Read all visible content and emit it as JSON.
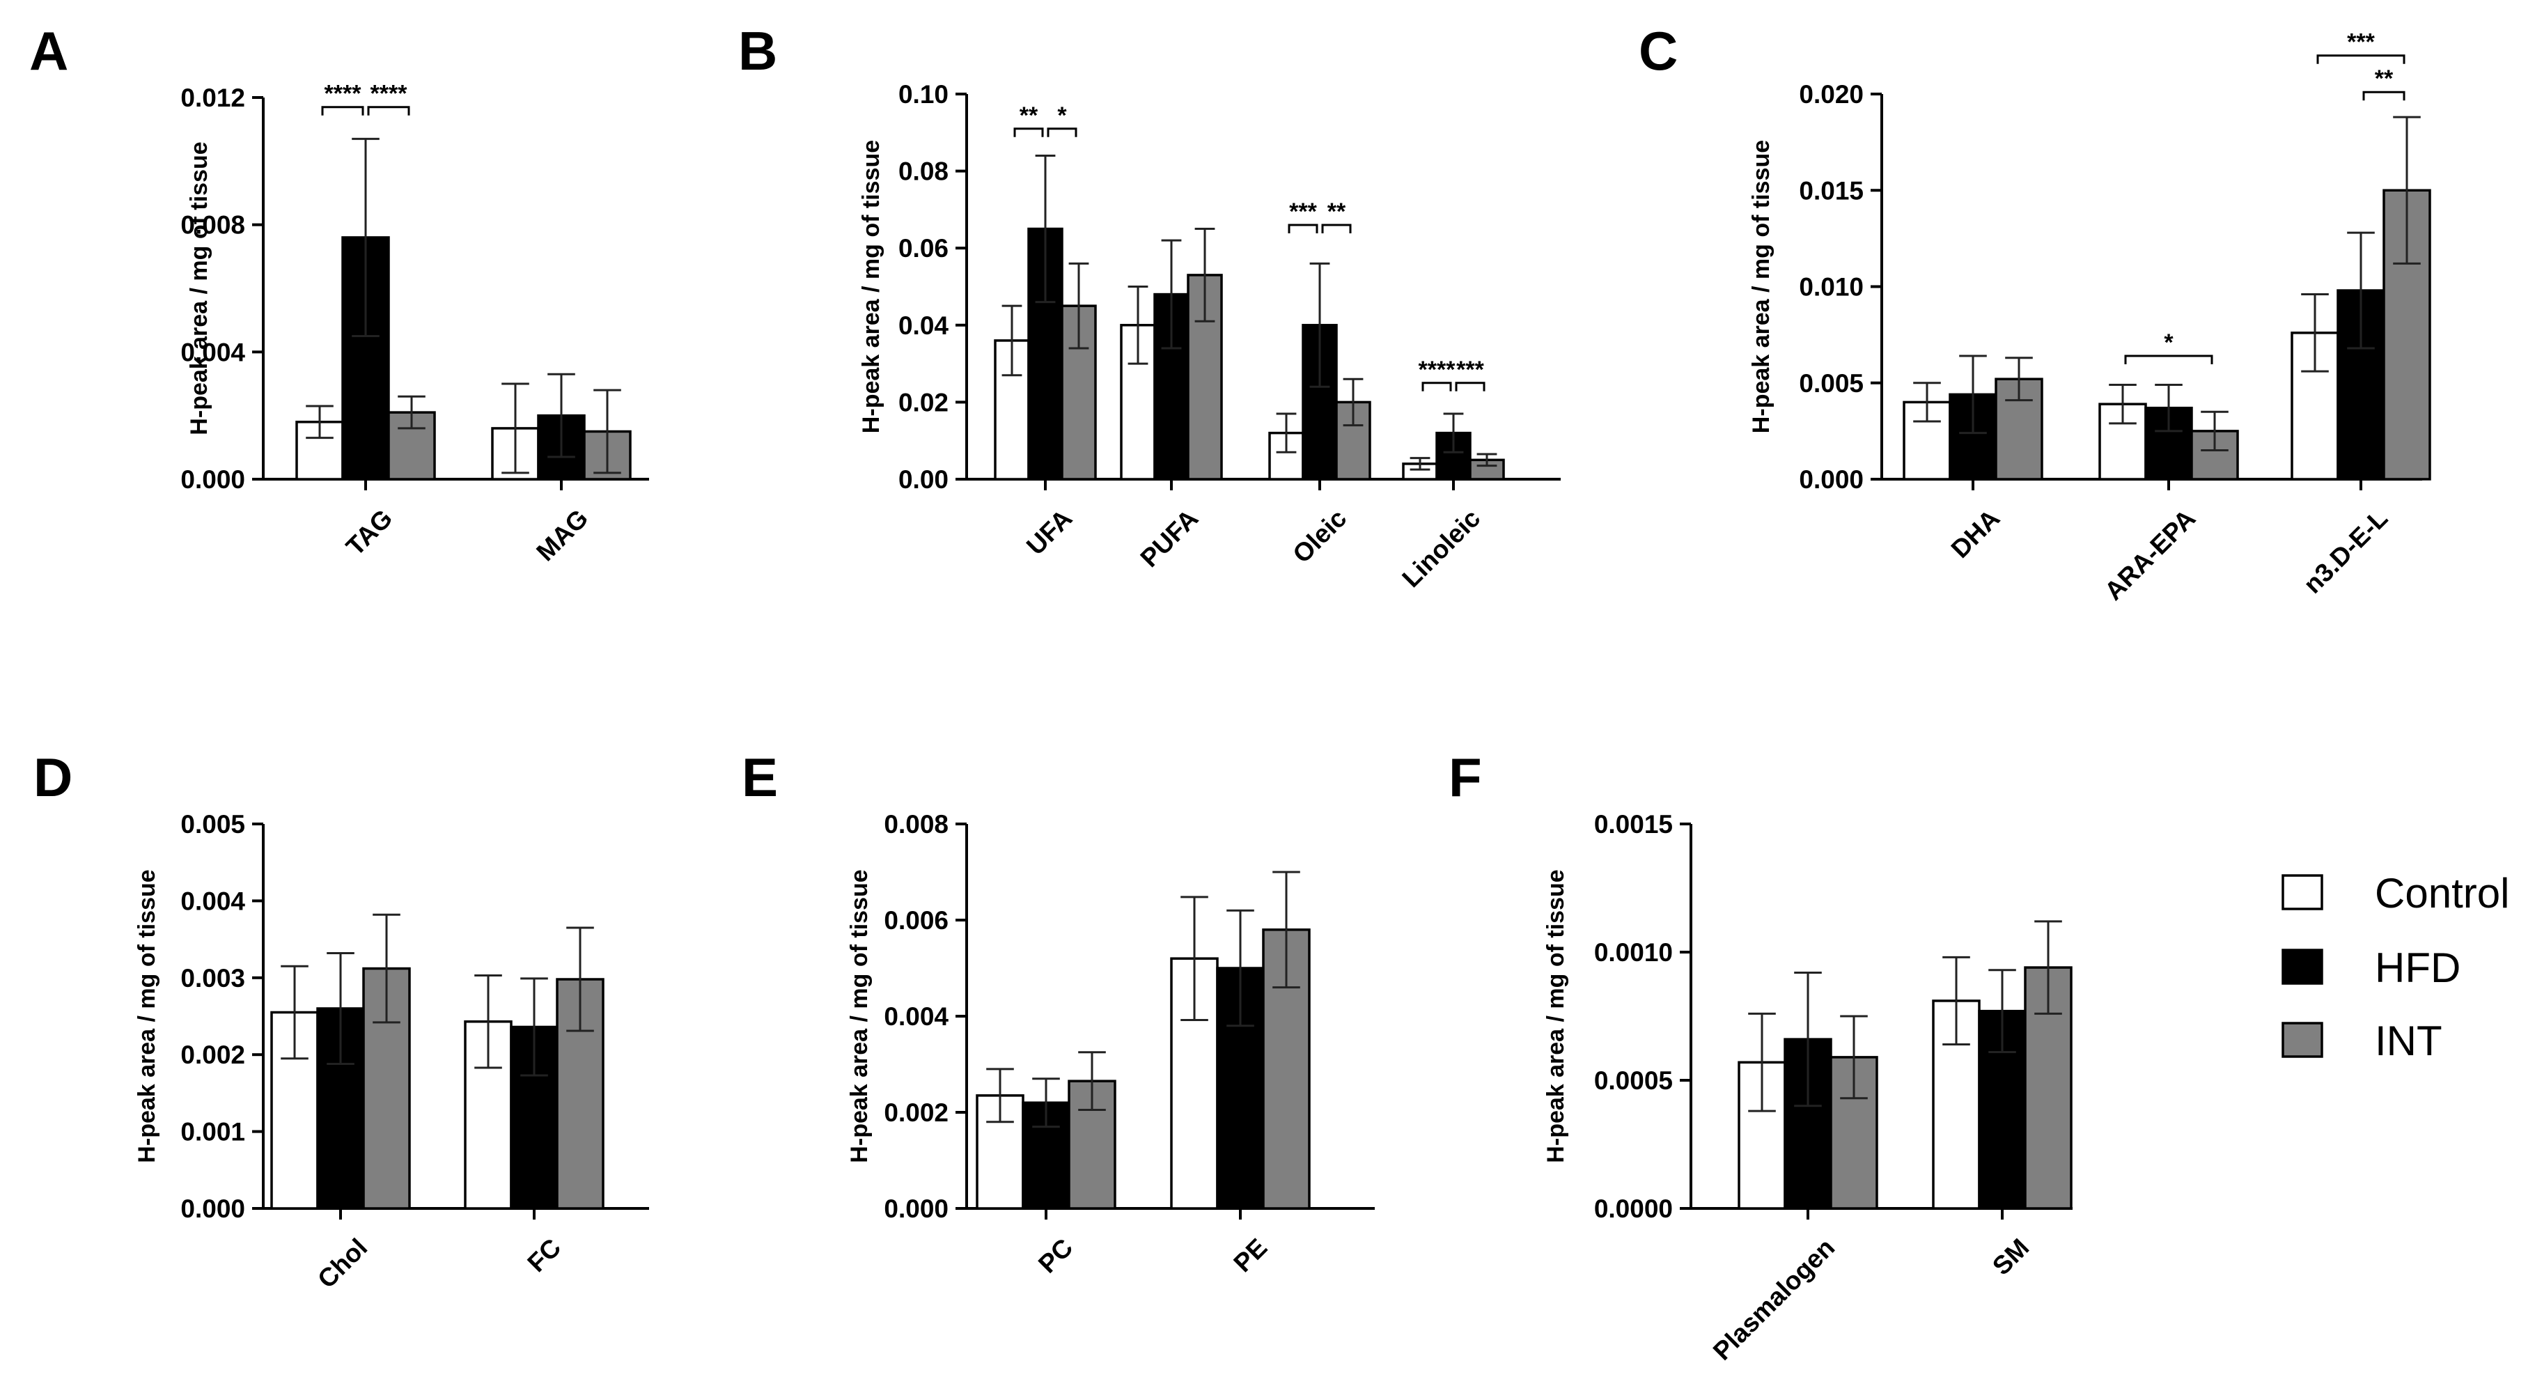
{
  "series_styles": [
    {
      "name": "Control",
      "fill": "#ffffff"
    },
    {
      "name": "HFD",
      "fill": "#000000"
    },
    {
      "name": "INT",
      "fill": "#808080"
    }
  ],
  "legend": {
    "position": "right",
    "entries": [
      "Control",
      "HFD",
      "INT"
    ]
  },
  "chart_data": [
    {
      "panel": "A",
      "type": "bar",
      "ylabel": "H-peak area / mg of tissue",
      "ylim": [
        0,
        0.012
      ],
      "yticks": [
        "0.000",
        "0.004",
        "0.008",
        "0.012"
      ],
      "categories": [
        "TAG",
        "MAG"
      ],
      "series": [
        {
          "name": "Control",
          "values": [
            0.0018,
            0.0016
          ],
          "errors": [
            0.0005,
            0.0014
          ]
        },
        {
          "name": "HFD",
          "values": [
            0.0076,
            0.002
          ],
          "errors": [
            0.0031,
            0.0013
          ]
        },
        {
          "name": "INT",
          "values": [
            0.0021,
            0.0015
          ],
          "errors": [
            0.0005,
            0.0013
          ]
        }
      ],
      "annotations": [
        {
          "label": "****",
          "category": 0,
          "from": 0,
          "to": 1,
          "y": 0.0117
        },
        {
          "label": "****",
          "category": 0,
          "from": 1,
          "to": 2,
          "y": 0.0117
        }
      ]
    },
    {
      "panel": "B",
      "type": "bar",
      "ylabel": "H-peak area / mg of tissue",
      "ylim": [
        0,
        0.1
      ],
      "yticks": [
        "0.00",
        "0.02",
        "0.04",
        "0.06",
        "0.08",
        "0.10"
      ],
      "categories": [
        "UFA",
        "PUFA",
        "Oleic",
        "Linoleic"
      ],
      "series": [
        {
          "name": "Control",
          "values": [
            0.036,
            0.04,
            0.012,
            0.004
          ],
          "errors": [
            0.009,
            0.01,
            0.005,
            0.0015
          ]
        },
        {
          "name": "HFD",
          "values": [
            0.065,
            0.048,
            0.04,
            0.012
          ],
          "errors": [
            0.019,
            0.014,
            0.016,
            0.005
          ]
        },
        {
          "name": "INT",
          "values": [
            0.045,
            0.053,
            0.02,
            0.005
          ],
          "errors": [
            0.011,
            0.012,
            0.006,
            0.0015
          ]
        }
      ],
      "annotations": [
        {
          "label": "**",
          "category": 0,
          "from": 0,
          "to": 1,
          "y": 0.091
        },
        {
          "label": "*",
          "category": 0,
          "from": 1,
          "to": 2,
          "y": 0.091
        },
        {
          "label": "***",
          "category": 2,
          "from": 0,
          "to": 1,
          "y": 0.066
        },
        {
          "label": "**",
          "category": 2,
          "from": 1,
          "to": 2,
          "y": 0.066
        },
        {
          "label": "****",
          "category": 3,
          "from": 0,
          "to": 1,
          "y": 0.025
        },
        {
          "label": "***",
          "category": 3,
          "from": 1,
          "to": 2,
          "y": 0.025
        }
      ]
    },
    {
      "panel": "C",
      "type": "bar",
      "ylabel": "H-peak area / mg of tissue",
      "ylim": [
        0,
        0.02
      ],
      "yticks": [
        "0.000",
        "0.005",
        "0.010",
        "0.015",
        "0.020"
      ],
      "categories": [
        "DHA",
        "ARA-EPA",
        "n3.D-E-L"
      ],
      "series": [
        {
          "name": "Control",
          "values": [
            0.004,
            0.0039,
            0.0076
          ],
          "errors": [
            0.001,
            0.001,
            0.002
          ]
        },
        {
          "name": "HFD",
          "values": [
            0.0044,
            0.0037,
            0.0098
          ],
          "errors": [
            0.002,
            0.0012,
            0.003
          ]
        },
        {
          "name": "INT",
          "values": [
            0.0052,
            0.0025,
            0.015
          ],
          "errors": [
            0.0011,
            0.001,
            0.0038
          ]
        }
      ],
      "annotations": [
        {
          "label": "*",
          "category": 1,
          "from": 0,
          "to": 2,
          "y": 0.0064
        },
        {
          "label": "***",
          "category": 2,
          "from": 0,
          "to": 2,
          "y": 0.022
        },
        {
          "label": "**",
          "category": 2,
          "from": 1,
          "to": 2,
          "y": 0.0201
        }
      ]
    },
    {
      "panel": "D",
      "type": "bar",
      "ylabel": "H-peak area / mg of tissue",
      "ylim": [
        0,
        0.005
      ],
      "yticks": [
        "0.000",
        "0.001",
        "0.002",
        "0.003",
        "0.004",
        "0.005"
      ],
      "categories": [
        "Chol",
        "FC"
      ],
      "series": [
        {
          "name": "Control",
          "values": [
            0.00255,
            0.00243
          ],
          "errors": [
            0.0006,
            0.0006
          ]
        },
        {
          "name": "HFD",
          "values": [
            0.0026,
            0.00236
          ],
          "errors": [
            0.00072,
            0.00063
          ]
        },
        {
          "name": "INT",
          "values": [
            0.00312,
            0.00298
          ],
          "errors": [
            0.0007,
            0.00067
          ]
        }
      ],
      "annotations": []
    },
    {
      "panel": "E",
      "type": "bar",
      "ylabel": "H-peak area / mg of tissue",
      "ylim": [
        0,
        0.008
      ],
      "yticks": [
        "0.000",
        "0.002",
        "0.004",
        "0.006",
        "0.008"
      ],
      "categories": [
        "PC",
        "PE"
      ],
      "series": [
        {
          "name": "Control",
          "values": [
            0.00235,
            0.0052
          ],
          "errors": [
            0.00055,
            0.00128
          ]
        },
        {
          "name": "HFD",
          "values": [
            0.0022,
            0.005
          ],
          "errors": [
            0.0005,
            0.0012
          ]
        },
        {
          "name": "INT",
          "values": [
            0.00265,
            0.0058
          ],
          "errors": [
            0.0006,
            0.0012
          ]
        }
      ],
      "annotations": []
    },
    {
      "panel": "F",
      "type": "bar",
      "ylabel": "H-peak area / mg of tissue",
      "ylim": [
        0,
        0.0015
      ],
      "yticks": [
        "0.0000",
        "0.0005",
        "0.0010",
        "0.0015"
      ],
      "categories": [
        "Plasmalogen",
        "SM"
      ],
      "series": [
        {
          "name": "Control",
          "values": [
            0.00057,
            0.00081
          ],
          "errors": [
            0.00019,
            0.00017
          ]
        },
        {
          "name": "HFD",
          "values": [
            0.00066,
            0.00077
          ],
          "errors": [
            0.00026,
            0.00016
          ]
        },
        {
          "name": "INT",
          "values": [
            0.00059,
            0.00094
          ],
          "errors": [
            0.00016,
            0.00018
          ]
        }
      ],
      "annotations": []
    }
  ]
}
